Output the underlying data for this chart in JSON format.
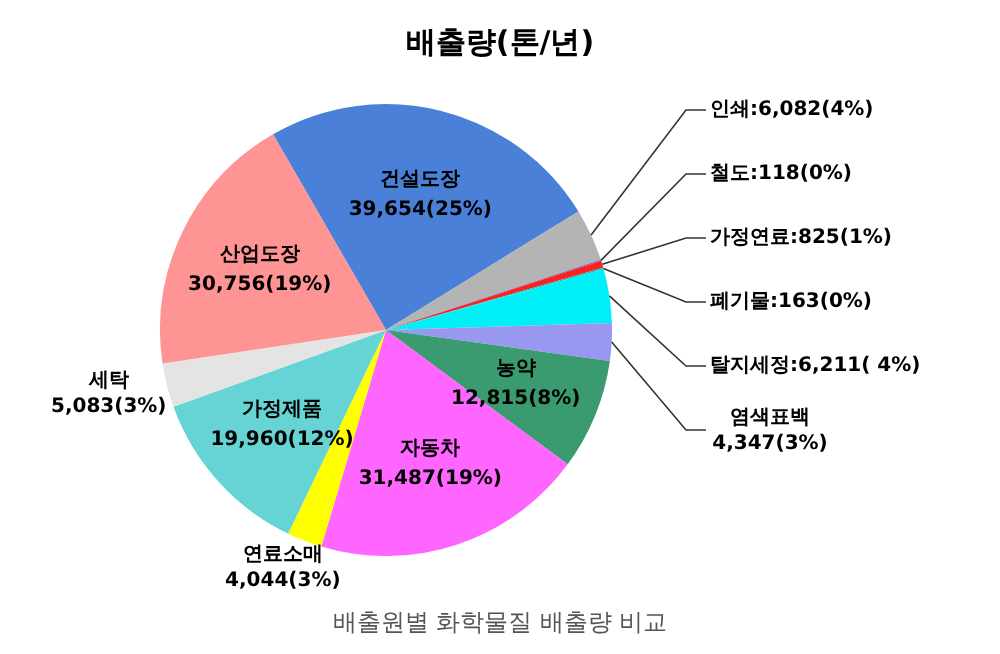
{
  "chart_data": {
    "type": "pie",
    "title": "배출량(톤/년)",
    "categories": [
      "건설도장",
      "인쇄",
      "철도",
      "가정연료",
      "폐기물",
      "탈지세정",
      "염색표백",
      "농약",
      "자동차",
      "연료소매",
      "가정제품",
      "세탁",
      "산업도장"
    ],
    "values": [
      39654,
      6082,
      118,
      825,
      163,
      6211,
      4347,
      12815,
      31487,
      4044,
      19960,
      5083,
      30756
    ],
    "value_labels": [
      "39,654(25%)",
      "6,082(4%)",
      "118(0%)",
      "825(1%)",
      "163(0%)",
      "6,211( 4%)",
      "4,347(3%)",
      "12,815(8%)",
      "31,487(19%)",
      "4,044(3%)",
      "19,960(12%)",
      "5,083(3%)",
      "30,756(19%)"
    ],
    "colors": [
      "#4a80d8",
      "#b4b4b4",
      "#6060d0",
      "#ff2020",
      "#00c8d0",
      "#00f0f8",
      "#9898f0",
      "#3a9a70",
      "#ff66ff",
      "#ffff00",
      "#66d4d4",
      "#e4e4e4",
      "#ff9494"
    ],
    "annotations": [
      "배출원별 화학물질 배출량 비교"
    ],
    "legend": false
  }
}
